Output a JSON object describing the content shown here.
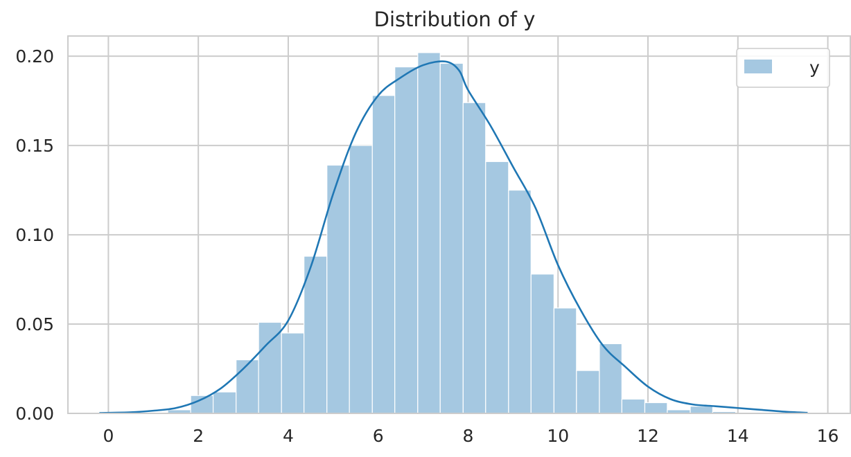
{
  "chart_data": {
    "type": "bar",
    "title": "Distribution of y",
    "xlabel": "",
    "ylabel": "",
    "xlim": [
      -0.9,
      16.5
    ],
    "ylim": [
      0,
      0.2113
    ],
    "x_ticks": [
      0,
      2,
      4,
      6,
      8,
      10,
      12,
      14,
      16
    ],
    "x_tick_labels": [
      "0",
      "2",
      "4",
      "6",
      "8",
      "10",
      "12",
      "14",
      "16"
    ],
    "y_ticks": [
      0.0,
      0.05,
      0.1,
      0.15,
      0.2
    ],
    "y_tick_labels": [
      "0.00",
      "0.05",
      "0.10",
      "0.15",
      "0.20"
    ],
    "grid": true,
    "legend": {
      "position": "top-right",
      "entries": [
        "y"
      ]
    },
    "histogram": {
      "series": "y",
      "color": "#a5c8e1",
      "bin_edges": [
        1.32,
        1.83,
        2.33,
        2.84,
        3.34,
        3.85,
        4.35,
        4.86,
        5.36,
        5.87,
        6.37,
        6.88,
        7.38,
        7.89,
        8.39,
        8.9,
        9.4,
        9.91,
        10.41,
        10.92,
        11.42,
        11.93,
        12.43,
        12.94,
        13.44,
        13.95
      ],
      "densities": [
        0.002,
        0.01,
        0.012,
        0.03,
        0.051,
        0.045,
        0.088,
        0.139,
        0.15,
        0.178,
        0.194,
        0.202,
        0.196,
        0.174,
        0.141,
        0.125,
        0.078,
        0.059,
        0.024,
        0.039,
        0.008,
        0.006,
        0.002,
        0.004,
        0.001
      ]
    },
    "kde": {
      "series": "y",
      "color": "#1f77b4",
      "x": [
        -0.2,
        0.5,
        1.0,
        1.5,
        2.0,
        2.5,
        3.0,
        3.5,
        4.0,
        4.5,
        5.0,
        5.5,
        6.0,
        6.5,
        7.0,
        7.5,
        7.8,
        8.0,
        8.5,
        9.0,
        9.5,
        10.0,
        10.5,
        11.0,
        11.5,
        12.0,
        12.5,
        13.0,
        13.5,
        14.0,
        14.5,
        15.0,
        15.55
      ],
      "y": [
        0.0002,
        0.0006,
        0.0015,
        0.003,
        0.007,
        0.014,
        0.025,
        0.038,
        0.052,
        0.082,
        0.123,
        0.157,
        0.178,
        0.188,
        0.195,
        0.197,
        0.192,
        0.181,
        0.161,
        0.138,
        0.115,
        0.083,
        0.058,
        0.038,
        0.026,
        0.015,
        0.008,
        0.005,
        0.004,
        0.003,
        0.002,
        0.001,
        0.0003
      ]
    }
  }
}
